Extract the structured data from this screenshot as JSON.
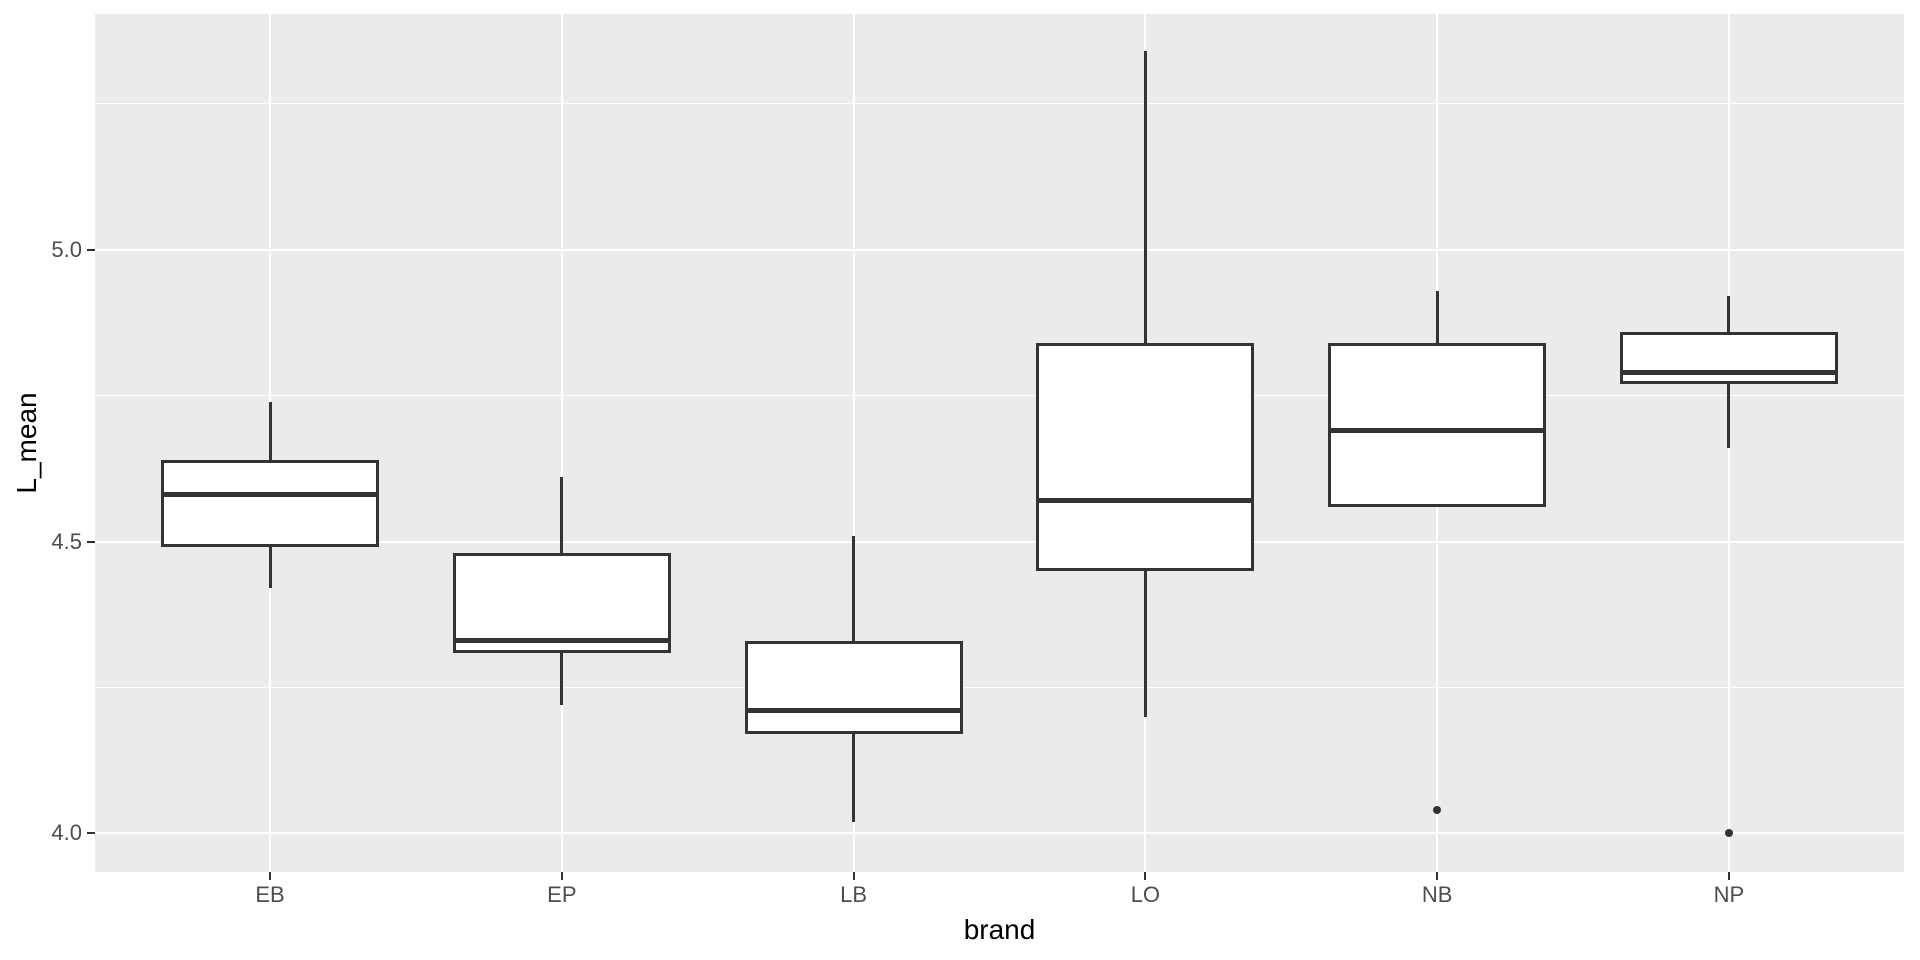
{
  "figure": {
    "kind": "ggplot2-style boxplot screenshot",
    "background": "#FFFFFF"
  },
  "colors": {
    "panel_background": "#EBEBEB",
    "gridline": "#FFFFFF",
    "box_fill": "#FFFFFF",
    "box_stroke": "#333333",
    "outlier": "#333333",
    "tick_mark": "#333333",
    "tick_label": "#4D4D4D",
    "axis_title": "#000000"
  },
  "chart_data": {
    "type": "boxplot",
    "title": "",
    "xlabel": "brand",
    "ylabel": "L_mean",
    "categories": [
      "EB",
      "EP",
      "LB",
      "LO",
      "NB",
      "NP"
    ],
    "series": [
      {
        "name": "EB",
        "whisker_low": 4.42,
        "q1": 4.49,
        "median": 4.58,
        "q3": 4.64,
        "whisker_high": 4.74,
        "outliers": []
      },
      {
        "name": "EP",
        "whisker_low": 4.22,
        "q1": 4.31,
        "median": 4.33,
        "q3": 4.48,
        "whisker_high": 4.61,
        "outliers": []
      },
      {
        "name": "LB",
        "whisker_low": 4.02,
        "q1": 4.17,
        "median": 4.21,
        "q3": 4.33,
        "whisker_high": 4.51,
        "outliers": []
      },
      {
        "name": "LO",
        "whisker_low": 4.2,
        "q1": 4.45,
        "median": 4.57,
        "q3": 4.84,
        "whisker_high": 5.34,
        "outliers": []
      },
      {
        "name": "NB",
        "whisker_low": 4.56,
        "q1": 4.56,
        "median": 4.69,
        "q3": 4.84,
        "whisker_high": 4.93,
        "outliers": [
          4.04
        ]
      },
      {
        "name": "NP",
        "whisker_low": 4.66,
        "q1": 4.77,
        "median": 4.79,
        "q3": 4.86,
        "whisker_high": 4.92,
        "outliers": [
          4.0
        ]
      }
    ],
    "y_ticks": [
      {
        "label": "4.0",
        "value": 4.0
      },
      {
        "label": "4.5",
        "value": 4.5
      },
      {
        "label": "5.0",
        "value": 5.0
      }
    ],
    "y_minor_ticks": [
      4.25,
      4.75,
      5.25
    ],
    "ylim": [
      3.934,
      5.404
    ],
    "grid": "white major + minor horizontal, white major vertical at categories",
    "legend": "none"
  }
}
